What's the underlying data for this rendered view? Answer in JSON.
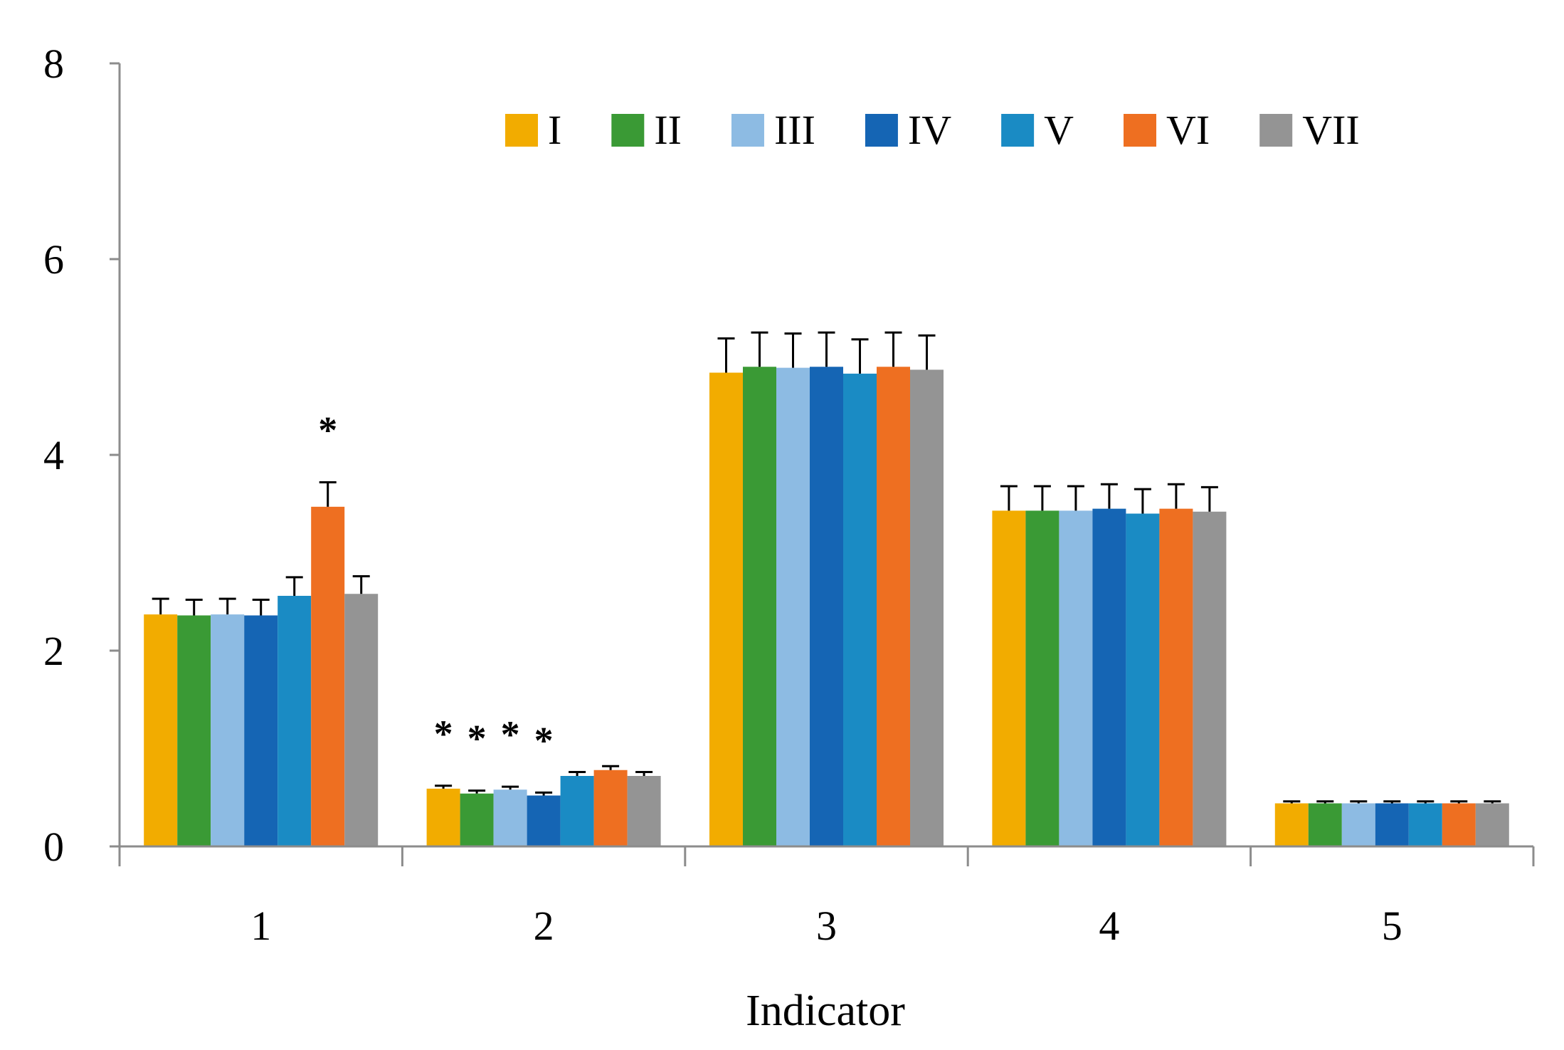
{
  "chart_data": {
    "type": "bar",
    "title": "",
    "xlabel": "Indicator",
    "ylabel": "",
    "ylim": [
      0,
      8
    ],
    "yticks": [
      "0",
      "2",
      "4",
      "6",
      "8"
    ],
    "categories": [
      "1",
      "2",
      "3",
      "4",
      "5"
    ],
    "grid": false,
    "legend": "top-right",
    "error_bars": true,
    "series": [
      {
        "name": "I",
        "color": "#F2AC00",
        "values": [
          2.37,
          0.59,
          4.84,
          3.43,
          0.44
        ],
        "errors": [
          0.16,
          0.03,
          0.35,
          0.25,
          0.02
        ]
      },
      {
        "name": "II",
        "color": "#3A9A35",
        "values": [
          2.36,
          0.54,
          4.9,
          3.43,
          0.44
        ],
        "errors": [
          0.16,
          0.03,
          0.35,
          0.25,
          0.02
        ]
      },
      {
        "name": "III",
        "color": "#8DBBE3",
        "values": [
          2.37,
          0.58,
          4.89,
          3.43,
          0.44
        ],
        "errors": [
          0.16,
          0.03,
          0.35,
          0.25,
          0.02
        ]
      },
      {
        "name": "IV",
        "color": "#1565B4",
        "values": [
          2.36,
          0.52,
          4.9,
          3.45,
          0.44
        ],
        "errors": [
          0.16,
          0.03,
          0.35,
          0.25,
          0.02
        ]
      },
      {
        "name": "V",
        "color": "#1A8BC4",
        "values": [
          2.56,
          0.72,
          4.83,
          3.4,
          0.44
        ],
        "errors": [
          0.19,
          0.04,
          0.35,
          0.25,
          0.02
        ]
      },
      {
        "name": "VI",
        "color": "#EE6F21",
        "values": [
          3.47,
          0.78,
          4.9,
          3.45,
          0.44
        ],
        "errors": [
          0.25,
          0.04,
          0.35,
          0.25,
          0.02
        ]
      },
      {
        "name": "VII",
        "color": "#949494",
        "values": [
          2.58,
          0.72,
          4.87,
          3.42,
          0.44
        ],
        "errors": [
          0.18,
          0.04,
          0.35,
          0.25,
          0.02
        ]
      }
    ],
    "annotations": [
      {
        "text": "*",
        "category": "1",
        "series": "VI"
      },
      {
        "text": "*",
        "category": "2",
        "series": "I"
      },
      {
        "text": "*",
        "category": "2",
        "series": "II"
      },
      {
        "text": "*",
        "category": "2",
        "series": "III"
      },
      {
        "text": "*",
        "category": "2",
        "series": "IV"
      }
    ]
  }
}
